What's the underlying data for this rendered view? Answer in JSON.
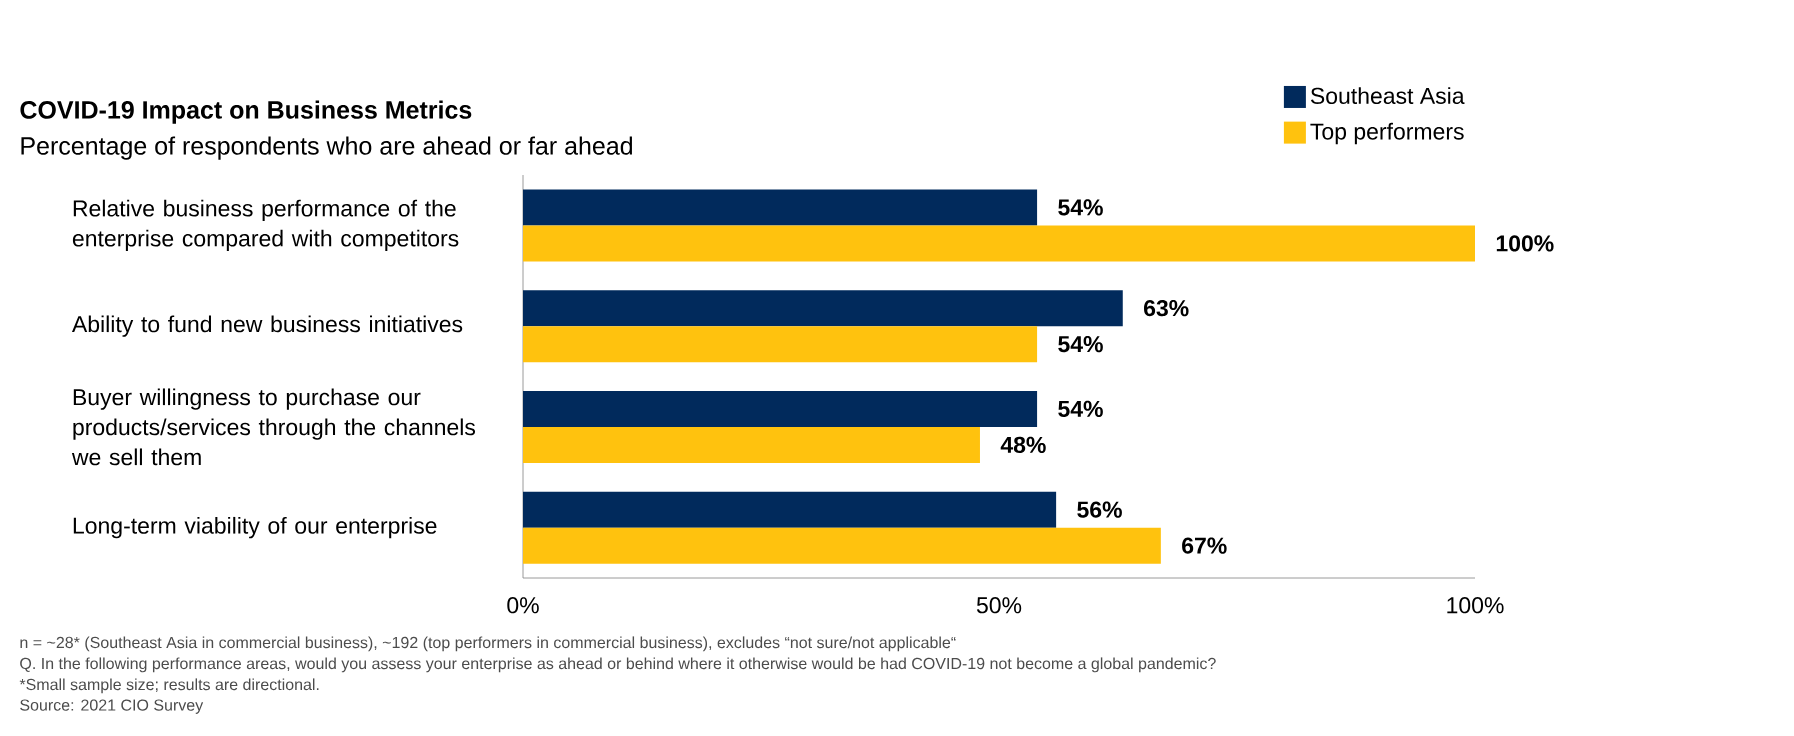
{
  "chart_data": {
    "type": "bar",
    "orientation": "horizontal",
    "title": "COVID-19 Impact on Business Metrics",
    "subtitle": "Percentage of respondents who are ahead or far ahead",
    "categories": [
      "Relative business performance of the enterprise compared with competitors",
      "Ability to fund new business initiatives",
      "Buyer willingness to purchase our products/services through the channels we sell them",
      "Long-term viability of our enterprise"
    ],
    "series": [
      {
        "name": "Southeast Asia",
        "color": "#012a5c",
        "values": [
          54,
          63,
          54,
          56
        ],
        "value_labels": [
          "54%",
          "63%",
          "54%",
          "56%"
        ]
      },
      {
        "name": "Top performers",
        "color": "#ffc20e",
        "values": [
          100,
          54,
          48,
          67
        ],
        "value_labels": [
          "100%",
          "54%",
          "48%",
          "67%"
        ]
      }
    ],
    "xlim": [
      0,
      100
    ],
    "xticks": [
      {
        "value": 0,
        "label": "0%"
      },
      {
        "value": 50,
        "label": "50%"
      },
      {
        "value": 100,
        "label": "100%"
      }
    ],
    "legend": "top right",
    "annotations": [
      "n = ~28* (Southeast Asia in commercial business), ~192 (top performers in commercial business), excludes “not sure/not applicable“",
      "Q. In the following performance areas, would you assess your enterprise as ahead or behind where it otherwise would be had COVID-19 not become a global pandemic?",
      "*Small sample size; results are directional.",
      "Source: 2021 CIO Survey"
    ]
  }
}
